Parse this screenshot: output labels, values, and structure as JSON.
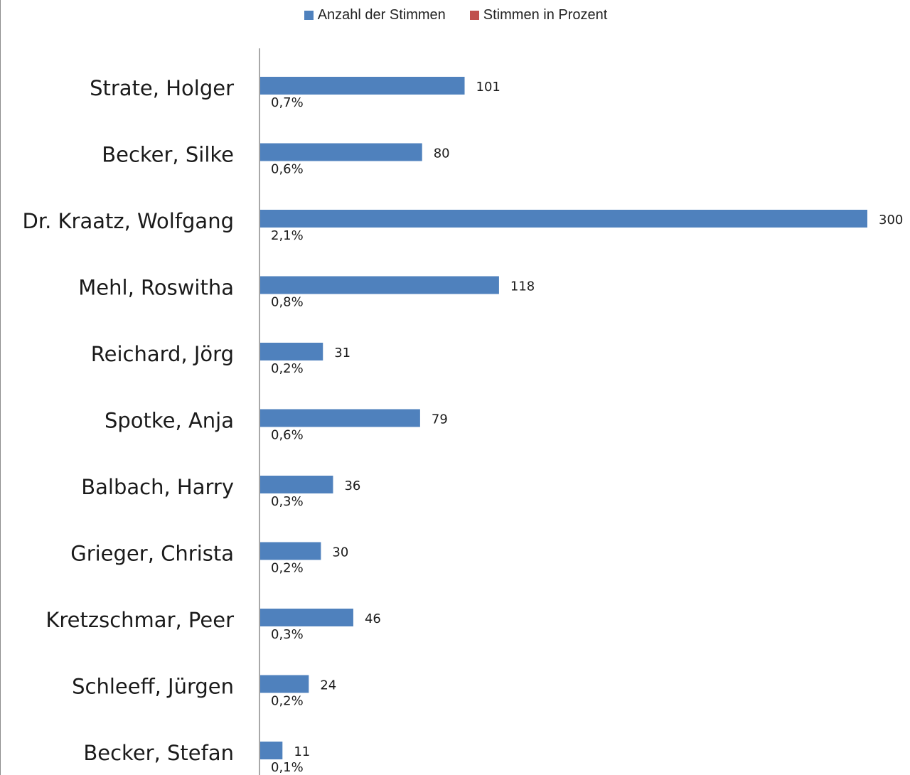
{
  "chart_data": {
    "type": "bar",
    "orientation": "horizontal",
    "categories": [
      "Strate, Holger",
      "Becker, Silke",
      "Dr. Kraatz, Wolfgang",
      "Mehl, Roswitha",
      "Reichard, Jörg",
      "Spotke, Anja",
      "Balbach, Harry",
      "Grieger, Christa",
      "Kretzschmar, Peer",
      "Schleeff, Jürgen",
      "Becker, Stefan"
    ],
    "series": [
      {
        "name": "Anzahl der Stimmen",
        "color": "#4f81bd",
        "values": [
          101,
          80,
          300,
          118,
          31,
          79,
          36,
          30,
          46,
          24,
          11
        ],
        "labels": [
          "101",
          "80",
          "300",
          "118",
          "31",
          "79",
          "36",
          "30",
          "46",
          "24",
          "11"
        ]
      },
      {
        "name": "Stimmen in Prozent",
        "color": "#c0504d",
        "values": [
          0.7,
          0.6,
          2.1,
          0.8,
          0.2,
          0.6,
          0.3,
          0.2,
          0.3,
          0.2,
          0.1
        ],
        "labels": [
          "0,7%",
          "0,6%",
          "2,1%",
          "0,8%",
          "0,2%",
          "0,6%",
          "0,3%",
          "0,2%",
          "0,3%",
          "0,2%",
          "0,1%"
        ]
      }
    ],
    "xlim": [
      0,
      300
    ],
    "grid": false,
    "legend": "top-center",
    "title": "",
    "xlabel": "",
    "ylabel": ""
  }
}
